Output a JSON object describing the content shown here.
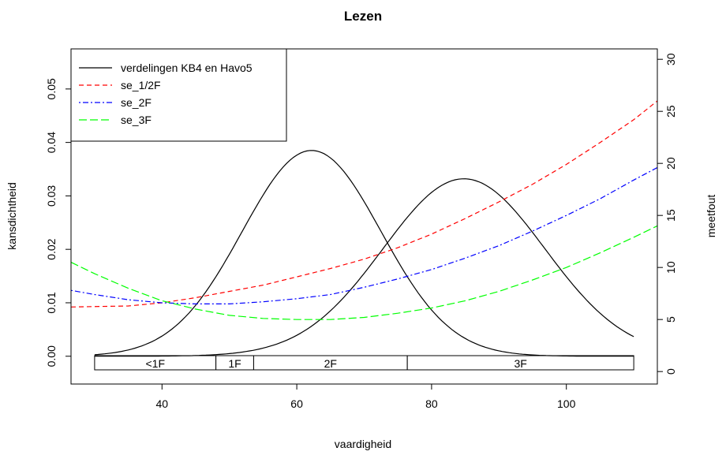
{
  "chart_data": {
    "type": "line",
    "title": "Lezen",
    "xlabel": "vaardigheid",
    "ylabel_left": "kansdichtheid",
    "ylabel_right": "meetfout",
    "xlim": [
      26.5,
      113.5
    ],
    "ylim_left": [
      -0.0052,
      0.0575
    ],
    "ylim_right": [
      -1.2,
      31.0
    ],
    "x_ticks": [
      40,
      60,
      80,
      100
    ],
    "y_ticks_left": [
      "0.00",
      "0.01",
      "0.02",
      "0.03",
      "0.04",
      "0.05"
    ],
    "y_ticks_right": [
      0,
      5,
      10,
      15,
      20,
      25,
      30
    ],
    "grid": false,
    "legend_position": "top-left",
    "legend": [
      {
        "label": "verdelingen KB4 en Havo5",
        "color": "#000000",
        "dash": "solid"
      },
      {
        "label": "se_1/2F",
        "color": "#ff0000",
        "dash": "dashed"
      },
      {
        "label": "se_2F",
        "color": "#0000ff",
        "dash": "dotdash"
      },
      {
        "label": "se_3F",
        "color": "#00ff00",
        "dash": "longdash"
      }
    ],
    "density_series": [
      {
        "name": "verdelingen KB4 en Havo5",
        "axis": "left",
        "color": "#000000",
        "mean": 62.2,
        "sd": 10.3,
        "scale": 0.0385,
        "x_range": [
          30,
          110
        ]
      },
      {
        "name": "verdelingen KB4 en Havo5",
        "axis": "left",
        "color": "#000000",
        "mean": 84.8,
        "sd": 12.0,
        "scale": 0.0332,
        "x_range": [
          30,
          110
        ]
      }
    ],
    "series": [
      {
        "name": "se_1/2F",
        "axis": "right",
        "color": "#ff0000",
        "dash": "dashed",
        "x": [
          26.5,
          35,
          40,
          45,
          50,
          55,
          60,
          65,
          70,
          75,
          80,
          85,
          90,
          95,
          100,
          105,
          110,
          113.5
        ],
        "y": [
          6.2,
          6.3,
          6.6,
          7.1,
          7.7,
          8.3,
          9.1,
          9.9,
          10.8,
          11.9,
          13.2,
          14.7,
          16.3,
          18.0,
          19.9,
          22.0,
          24.2,
          26.0
        ]
      },
      {
        "name": "se_2F",
        "axis": "right",
        "color": "#0000ff",
        "dash": "dotdash",
        "x": [
          26.5,
          30,
          35,
          40,
          45,
          50,
          55,
          60,
          65,
          70,
          75,
          80,
          85,
          90,
          95,
          100,
          105,
          110,
          113.5
        ],
        "y": [
          7.8,
          7.4,
          6.9,
          6.6,
          6.5,
          6.5,
          6.7,
          7.0,
          7.4,
          8.1,
          8.9,
          9.8,
          10.9,
          12.1,
          13.5,
          15.0,
          16.6,
          18.4,
          19.6
        ]
      },
      {
        "name": "se_3F",
        "axis": "right",
        "color": "#00ff00",
        "dash": "longdash",
        "x": [
          26.5,
          30,
          35,
          40,
          45,
          50,
          55,
          60,
          65,
          70,
          75,
          80,
          85,
          90,
          95,
          100,
          105,
          110,
          113.5
        ],
        "y": [
          10.5,
          9.4,
          8.0,
          6.8,
          6.0,
          5.4,
          5.1,
          5.0,
          5.0,
          5.2,
          5.6,
          6.1,
          6.8,
          7.7,
          8.8,
          10.0,
          11.4,
          12.9,
          14.0
        ]
      }
    ],
    "levels": [
      {
        "label": "<1F",
        "x_from": 30,
        "x_to": 48.0
      },
      {
        "label": "1F",
        "x_from": 48.0,
        "x_to": 53.6
      },
      {
        "label": "2F",
        "x_from": 53.6,
        "x_to": 76.4
      },
      {
        "label": "3F",
        "x_from": 76.4,
        "x_to": 110
      }
    ]
  }
}
